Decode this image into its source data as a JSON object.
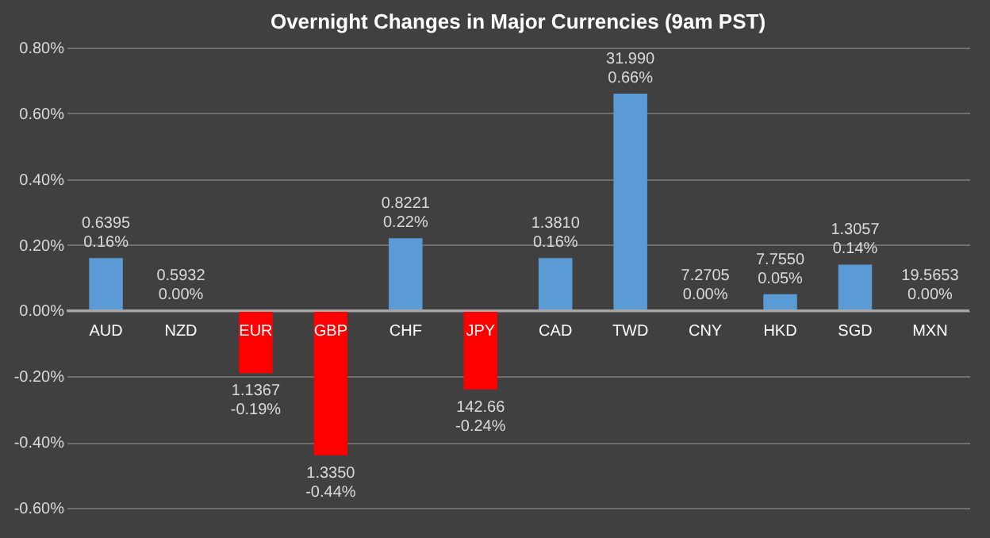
{
  "chart_data": {
    "type": "bar",
    "title": "Overnight Changes in Major Currencies (9am PST)",
    "categories": [
      "AUD",
      "NZD",
      "EUR",
      "GBP",
      "CHF",
      "JPY",
      "CAD",
      "TWD",
      "CNY",
      "HKD",
      "SGD",
      "MXN"
    ],
    "values": [
      0.16,
      0.0,
      -0.19,
      -0.44,
      0.22,
      -0.24,
      0.16,
      0.66,
      0.0,
      0.05,
      0.14,
      0.0
    ],
    "colors": [
      "#5b9bd5",
      "#5b9bd5",
      "#ff0000",
      "#ff0000",
      "#5b9bd5",
      "#ff0000",
      "#5b9bd5",
      "#5b9bd5",
      "#5b9bd5",
      "#5b9bd5",
      "#5b9bd5",
      "#5b9bd5"
    ],
    "value_labels": [
      "0.6395\n0.16%",
      "0.5932\n0.00%",
      "1.1367\n-0.19%",
      "1.3350\n-0.44%",
      "0.8221\n0.22%",
      "142.66\n-0.24%",
      "1.3810\n0.16%",
      "31.990\n0.66%",
      "7.2705\n0.00%",
      "7.7550\n0.05%",
      "1.3057\n0.14%",
      "19.5653\n0.00%"
    ],
    "ylim": [
      -0.6,
      0.8
    ],
    "yticks": [
      {
        "value": -0.6,
        "label": "-0.60%"
      },
      {
        "value": -0.4,
        "label": "-0.40%"
      },
      {
        "value": -0.2,
        "label": "-0.20%"
      },
      {
        "value": 0.0,
        "label": "0.00%"
      },
      {
        "value": 0.2,
        "label": "0.20%"
      },
      {
        "value": 0.4,
        "label": "0.40%"
      },
      {
        "value": 0.6,
        "label": "0.60%"
      },
      {
        "value": 0.8,
        "label": "0.80%"
      }
    ],
    "grid": "y"
  }
}
